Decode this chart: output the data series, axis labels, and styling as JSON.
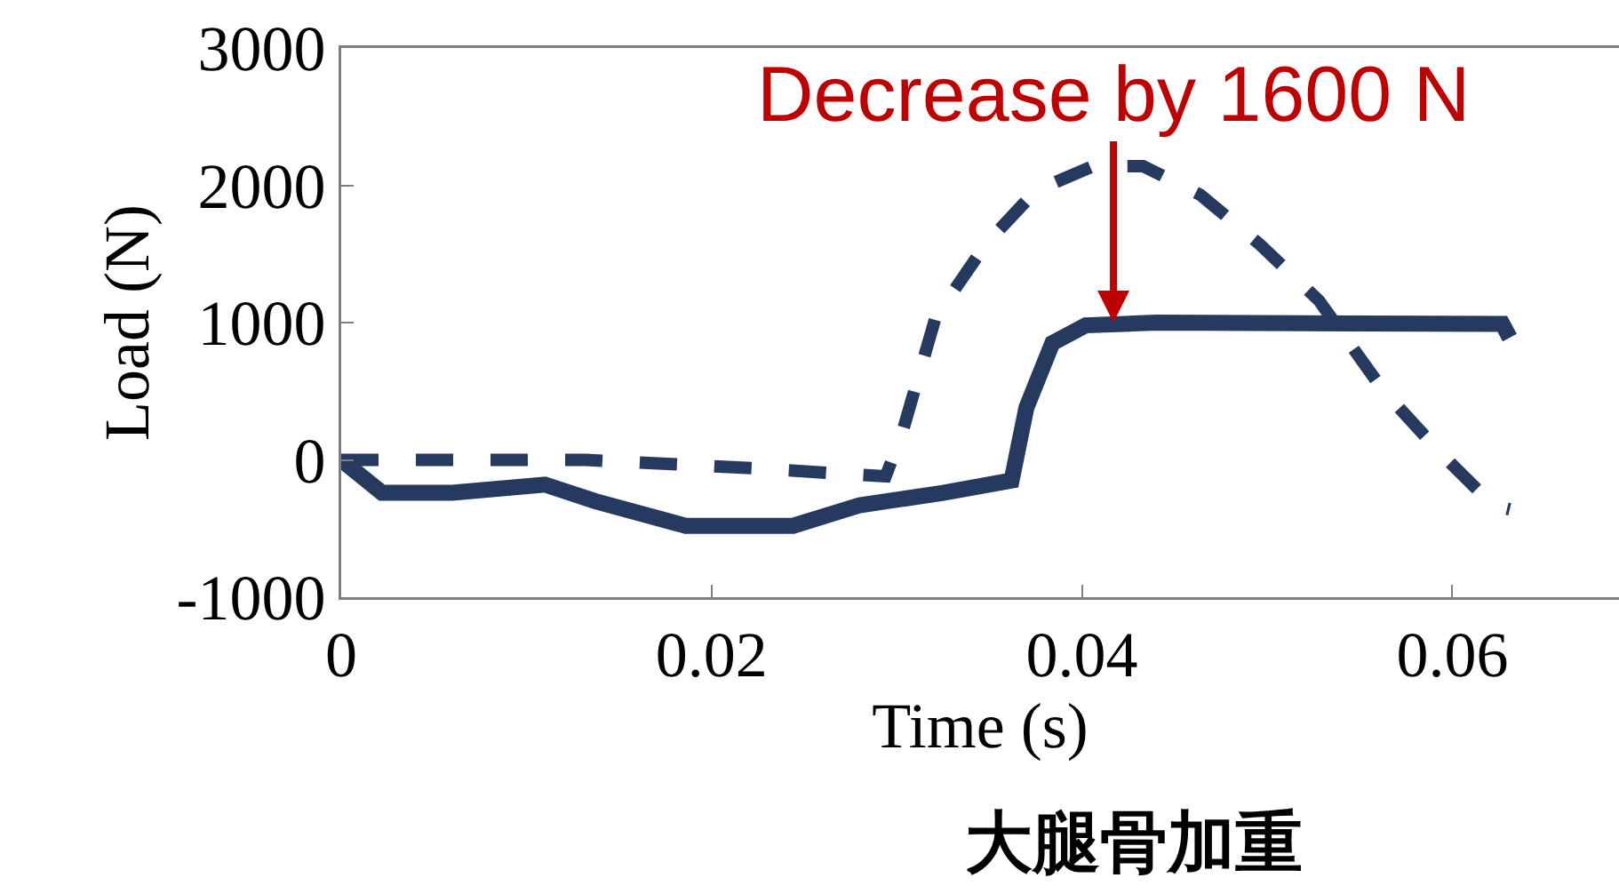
{
  "chart_data": {
    "type": "line",
    "title": "大腿骨加重",
    "xlabel": "Time (s)",
    "ylabel": "Load (N)",
    "xlim": [
      0,
      0.069
    ],
    "xticks": [
      0,
      0.02,
      0.04,
      0.06
    ],
    "ylim": [
      -1000,
      3000
    ],
    "yticks": [
      -1000,
      0,
      1000,
      2000,
      3000
    ],
    "series": [
      {
        "color": "#253a5e",
        "line_style": "solid",
        "x": [
          0,
          0.0022,
          0.006,
          0.011,
          0.0137,
          0.0186,
          0.0244,
          0.028,
          0.0325,
          0.0362,
          0.037,
          0.0384,
          0.0402,
          0.044,
          0.0627,
          0.0631
        ],
        "values": [
          0,
          -240,
          -240,
          -180,
          -300,
          -480,
          -480,
          -330,
          -240,
          -150,
          380,
          850,
          980,
          1000,
          990,
          890
        ]
      },
      {
        "color": "#253a5e",
        "line_style": "dashed",
        "x": [
          0,
          0.0132,
          0.0222,
          0.0294,
          0.0303,
          0.0321,
          0.0348,
          0.0375,
          0.0406,
          0.0433,
          0.0464,
          0.0496,
          0.0528,
          0.0563,
          0.0595,
          0.0622,
          0.0631
        ],
        "values": [
          0,
          0,
          -60,
          -120,
          200,
          1040,
          1570,
          1960,
          2140,
          2140,
          1930,
          1570,
          1160,
          500,
          30,
          -330,
          -360
        ]
      }
    ],
    "annotations": [
      {
        "text": "Decrease by 1600 N",
        "x": 0.0417,
        "y": 1000
      }
    ]
  }
}
